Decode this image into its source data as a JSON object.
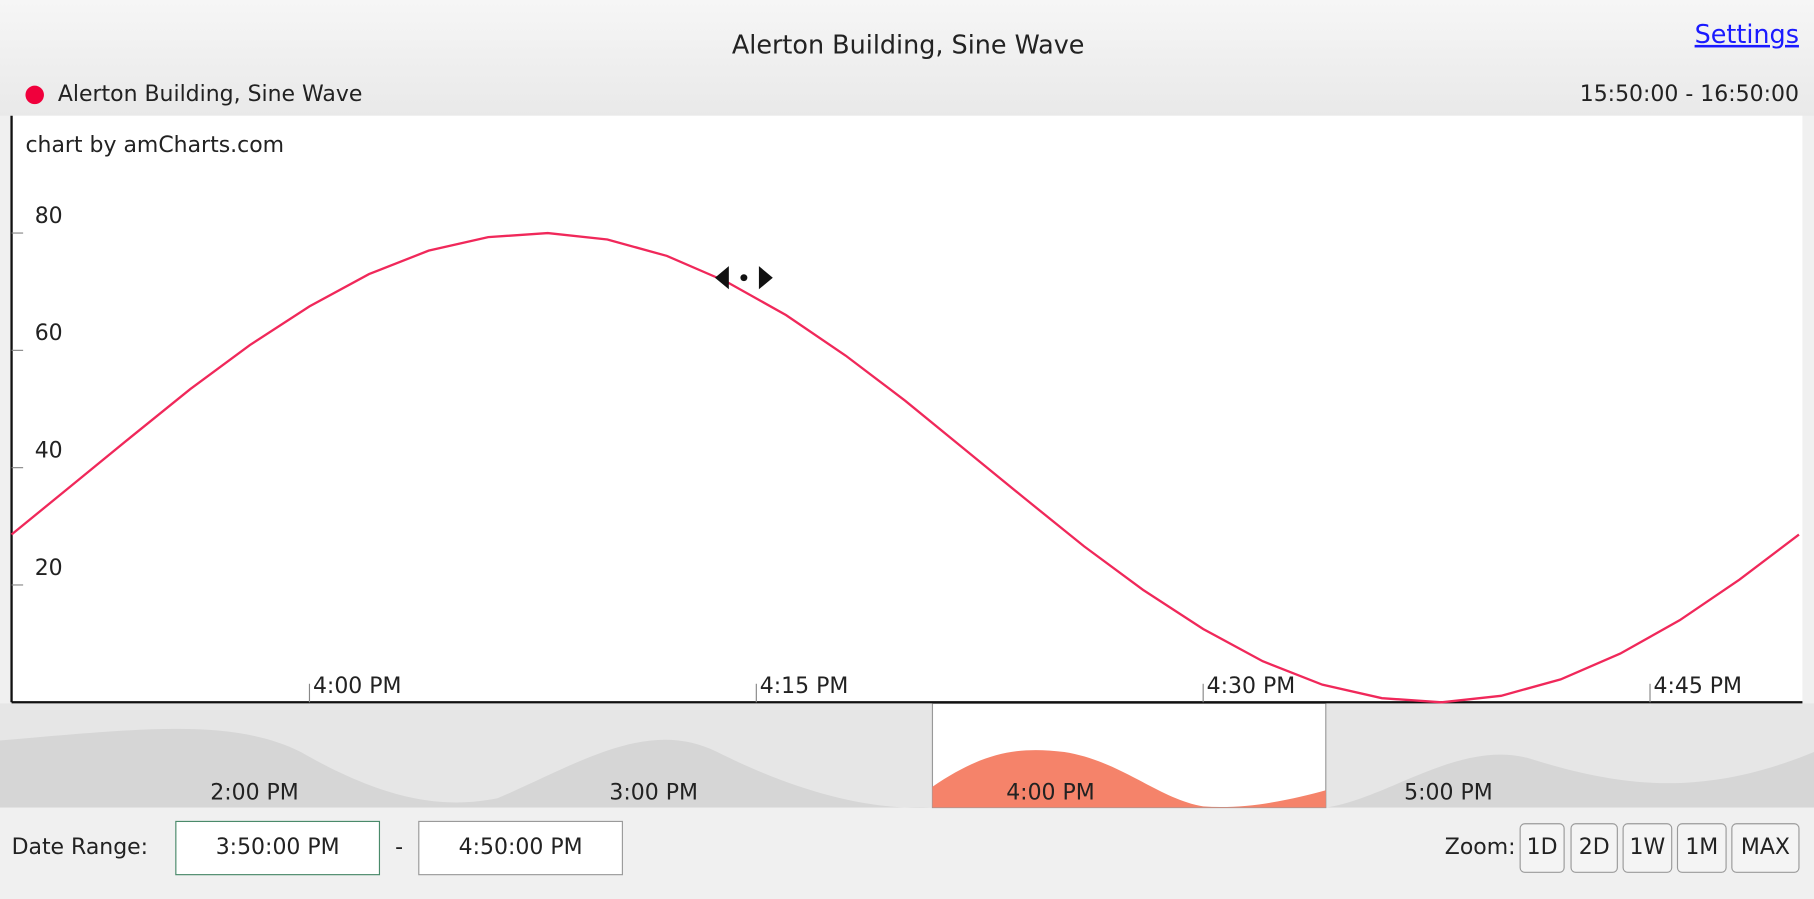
{
  "chart_data": {
    "type": "line",
    "title": "Alerton Building, Sine Wave",
    "credit": "chart by amCharts.com",
    "range_label": "15:50:00 - 16:50:00",
    "x": [
      "3:50 PM",
      "3:52 PM",
      "3:54 PM",
      "3:56 PM",
      "3:58 PM",
      "4:00 PM",
      "4:02 PM",
      "4:04 PM",
      "4:06 PM",
      "4:08 PM",
      "4:10 PM",
      "4:12 PM",
      "4:14 PM",
      "4:16 PM",
      "4:18 PM",
      "4:20 PM",
      "4:22 PM",
      "4:24 PM",
      "4:26 PM",
      "4:28 PM",
      "4:30 PM",
      "4:32 PM",
      "4:34 PM",
      "4:36 PM",
      "4:38 PM",
      "4:40 PM",
      "4:42 PM",
      "4:44 PM",
      "4:46 PM",
      "4:48 PM",
      "4:50 PM"
    ],
    "series": [
      {
        "name": "Alerton Building, Sine Wave",
        "color": "#f0285a",
        "values": [
          28.6,
          36.9,
          45.2,
          53.4,
          60.9,
          67.5,
          73.0,
          77.0,
          79.3,
          80.0,
          78.9,
          76.1,
          71.7,
          66.0,
          59.1,
          51.4,
          43.1,
          34.8,
          26.6,
          19.1,
          12.5,
          7.0,
          3.0,
          0.7,
          0.0,
          1.1,
          3.9,
          8.3,
          14.0,
          20.9,
          28.6
        ]
      }
    ],
    "xlim": [
      "3:50 PM",
      "4:50 PM"
    ],
    "xticks": [
      "4:00 PM",
      "4:15 PM",
      "4:30 PM",
      "4:45 PM"
    ],
    "ylim": [
      0,
      100
    ],
    "yticks": [
      20,
      40,
      60,
      80
    ],
    "grid": false
  },
  "header": {
    "settings": "Settings"
  },
  "navigator": {
    "labels": [
      "2:00 PM",
      "3:00 PM",
      "4:00 PM",
      "5:00 PM"
    ]
  },
  "controls": {
    "date_range_label": "Date Range:",
    "start": "3:50:00 PM",
    "separator": "-",
    "end": "4:50:00 PM",
    "zoom_label": "Zoom:",
    "zoom_buttons": [
      "1D",
      "2D",
      "1W",
      "1M",
      "MAX"
    ]
  }
}
